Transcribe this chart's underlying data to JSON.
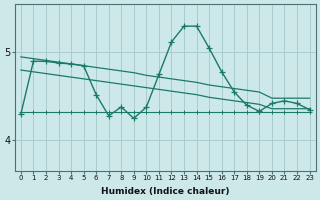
{
  "background_color": "#cce8e8",
  "grid_color": "#aacccc",
  "line_color": "#1a7a6a",
  "x_labels": [
    "0",
    "1",
    "2",
    "3",
    "4",
    "5",
    "6",
    "7",
    "8",
    "9",
    "10",
    "11",
    "12",
    "13",
    "14",
    "15",
    "16",
    "17",
    "18",
    "19",
    "20",
    "21",
    "22",
    "23"
  ],
  "xlabel": "Humidex (Indice chaleur)",
  "yticks": [
    4,
    5
  ],
  "ylim": [
    3.65,
    5.55
  ],
  "xlim": [
    -0.5,
    23.5
  ],
  "series": [
    {
      "name": "main_jagged",
      "x": [
        0,
        1,
        2,
        3,
        4,
        5,
        6,
        7,
        8,
        9,
        10,
        11,
        12,
        13,
        14,
        15,
        16,
        17,
        18,
        19,
        20,
        21,
        22,
        23
      ],
      "y": [
        4.3,
        4.9,
        4.9,
        4.88,
        4.87,
        4.85,
        4.52,
        4.28,
        4.38,
        4.25,
        4.38,
        4.75,
        5.12,
        5.3,
        5.3,
        5.05,
        4.78,
        4.55,
        4.4,
        4.33,
        4.42,
        4.45,
        4.42,
        4.35
      ]
    },
    {
      "name": "upper_envelope",
      "x": [
        0,
        1,
        2,
        3,
        4,
        5,
        6,
        7,
        8,
        9,
        10,
        11,
        12,
        13,
        14,
        15,
        16,
        17,
        18,
        19,
        20,
        21,
        22,
        23
      ],
      "y": [
        4.95,
        4.93,
        4.91,
        4.89,
        4.87,
        4.85,
        4.83,
        4.81,
        4.79,
        4.77,
        4.74,
        4.72,
        4.7,
        4.68,
        4.66,
        4.63,
        4.61,
        4.59,
        4.57,
        4.55,
        4.48,
        4.48,
        4.48,
        4.48
      ]
    },
    {
      "name": "lower_envelope",
      "x": [
        0,
        1,
        2,
        3,
        4,
        5,
        6,
        7,
        8,
        9,
        10,
        11,
        12,
        13,
        14,
        15,
        16,
        17,
        18,
        19,
        20,
        21,
        22,
        23
      ],
      "y": [
        4.8,
        4.78,
        4.76,
        4.74,
        4.72,
        4.7,
        4.68,
        4.66,
        4.64,
        4.62,
        4.6,
        4.58,
        4.56,
        4.54,
        4.52,
        4.49,
        4.47,
        4.45,
        4.43,
        4.41,
        4.36,
        4.36,
        4.36,
        4.36
      ]
    },
    {
      "name": "flat_bottom",
      "x": [
        0,
        1,
        2,
        3,
        4,
        5,
        6,
        7,
        8,
        9,
        10,
        11,
        12,
        13,
        14,
        15,
        16,
        17,
        18,
        19,
        20,
        21,
        22,
        23
      ],
      "y": [
        4.32,
        4.32,
        4.32,
        4.32,
        4.32,
        4.32,
        4.32,
        4.32,
        4.32,
        4.32,
        4.32,
        4.32,
        4.32,
        4.32,
        4.32,
        4.32,
        4.32,
        4.32,
        4.32,
        4.32,
        4.32,
        4.32,
        4.32,
        4.32
      ]
    }
  ]
}
